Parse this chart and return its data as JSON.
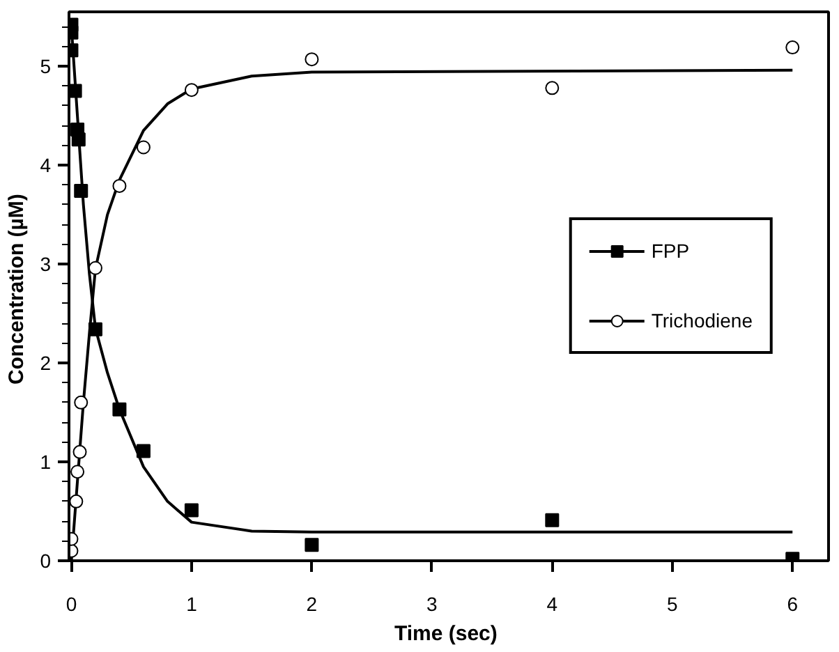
{
  "chart_data": {
    "type": "scatter",
    "xlabel": "Time  (sec)",
    "ylabel": "Concentration  (µM)",
    "xlim": [
      -0.02,
      6.3
    ],
    "ylim": [
      0,
      5.55
    ],
    "xticks": [
      0,
      1,
      2,
      3,
      4,
      5,
      6
    ],
    "yticks": [
      0,
      1,
      2,
      3,
      4,
      5
    ],
    "grid": false,
    "legend": "right",
    "series": [
      {
        "name": "FPP",
        "marker": "square",
        "color": "#000000",
        "x": [
          0,
          0,
          0,
          0.03,
          0.05,
          0.06,
          0.08,
          0.2,
          0.4,
          0.6,
          1,
          2,
          4,
          6
        ],
        "values": [
          5.42,
          5.34,
          5.16,
          4.75,
          4.36,
          4.26,
          3.74,
          2.34,
          1.53,
          1.11,
          0.51,
          0.16,
          0.41,
          0.02
        ]
      },
      {
        "type": "line",
        "color": "#000000",
        "x": [
          0,
          0.05,
          0.1,
          0.15,
          0.2,
          0.3,
          0.4,
          0.6,
          0.8,
          1,
          1.5,
          2,
          6
        ],
        "values": [
          5.4,
          4.5,
          3.6,
          2.9,
          2.35,
          1.9,
          1.53,
          0.95,
          0.6,
          0.39,
          0.3,
          0.29,
          0.29
        ]
      },
      {
        "name": "Trichodiene",
        "marker": "circle",
        "color": "#000000",
        "x": [
          0,
          0,
          0.04,
          0.05,
          0.07,
          0.08,
          0.2,
          0.4,
          0.6,
          1,
          2,
          4,
          6
        ],
        "values": [
          0.1,
          0.22,
          0.6,
          0.9,
          1.1,
          1.6,
          2.96,
          3.79,
          4.18,
          4.76,
          5.07,
          4.78,
          5.19
        ]
      },
      {
        "type": "line",
        "color": "#000000",
        "x": [
          0,
          0.05,
          0.1,
          0.15,
          0.2,
          0.3,
          0.4,
          0.6,
          0.8,
          1,
          1.5,
          2,
          6
        ],
        "values": [
          0,
          0.8,
          1.6,
          2.3,
          2.95,
          3.5,
          3.85,
          4.35,
          4.62,
          4.77,
          4.9,
          4.94,
          4.96
        ]
      }
    ]
  }
}
